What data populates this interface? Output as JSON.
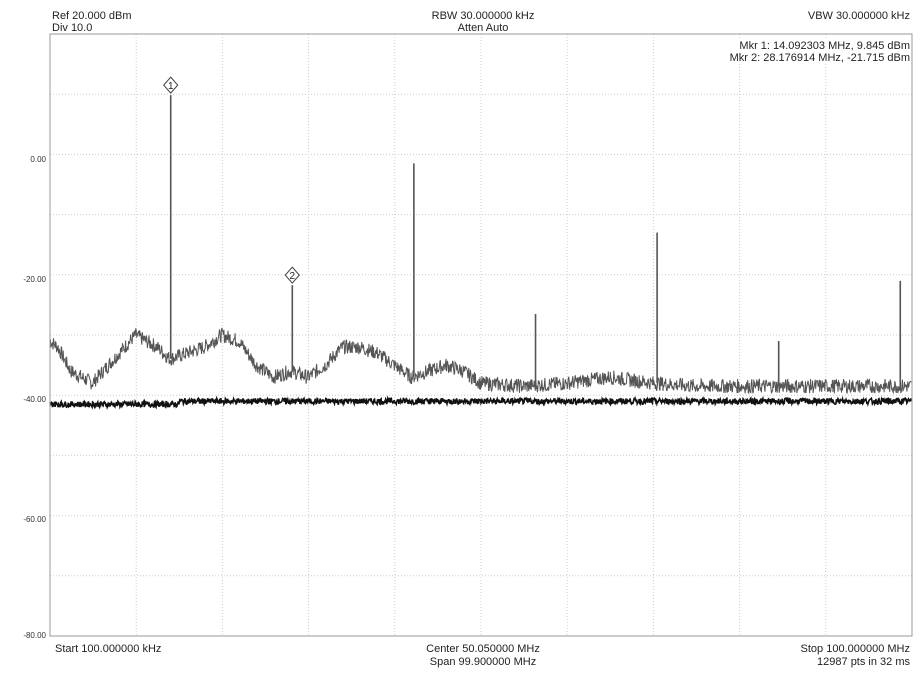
{
  "header": {
    "ref": "Ref 20.000 dBm",
    "div": "Div 10.0",
    "rbw": "RBW 30.000000 kHz",
    "atten": "Atten Auto",
    "vbw": "VBW 30.000000 kHz",
    "mkr1": "Mkr 1: 14.092303 MHz, 9.845 dBm",
    "mkr2": "Mkr 2: 28.176914 MHz, -21.715 dBm"
  },
  "footer": {
    "start": "Start 100.000000 kHz",
    "center": "Center 50.050000 MHz",
    "span": "Span 99.900000 MHz",
    "stop": "Stop 100.000000 MHz",
    "points": "12987 pts in 32 ms"
  },
  "chart_data": {
    "type": "line",
    "xlabel": "",
    "ylabel": "",
    "xlim": [
      0.1,
      100.0
    ],
    "ylim": [
      -80,
      20
    ],
    "x_unit": "MHz",
    "y_unit": "dBm",
    "ytick_labels": [
      "0.00",
      "-20.00",
      "-40.00",
      "-60.00",
      "-80.00"
    ],
    "ytick_values": [
      0,
      -20,
      -40,
      -60,
      -80
    ],
    "grid": true,
    "grid_divisions": {
      "x": 10,
      "y": 10
    },
    "colors": {
      "trace": "#555555",
      "noise_floor": "#111111",
      "grid": "#cccccc",
      "marker": "#444444"
    },
    "markers": [
      {
        "label": "1",
        "x": 14.092303,
        "y": 9.845
      },
      {
        "label": "2",
        "x": 28.176914,
        "y": -21.715
      }
    ],
    "peaks": [
      {
        "x": 14.09,
        "y": 9.845
      },
      {
        "x": 28.18,
        "y": -21.715
      },
      {
        "x": 42.27,
        "y": -1.5
      },
      {
        "x": 56.37,
        "y": -26.5
      },
      {
        "x": 70.46,
        "y": -13
      },
      {
        "x": 84.55,
        "y": -31
      },
      {
        "x": 98.64,
        "y": -21
      }
    ],
    "series": [
      {
        "x": [
          0.1,
          1,
          2.5,
          5,
          7.5,
          10,
          12.5,
          14,
          16,
          18,
          20,
          22,
          24,
          26,
          28,
          30,
          32,
          34,
          36,
          38,
          40,
          42,
          44,
          46,
          48,
          50,
          55,
          60,
          65,
          70,
          75,
          80,
          85,
          90,
          95,
          100
        ],
        "values": [
          -31,
          -32,
          -36,
          -38,
          -34,
          -30,
          -32,
          -34,
          -33,
          -32,
          -30,
          -31,
          -35,
          -37,
          -36,
          -37,
          -35,
          -32,
          -32,
          -33,
          -35,
          -37,
          -36,
          -35,
          -36,
          -38,
          -38.5,
          -38,
          -37,
          -38,
          -38.5,
          -38.5,
          -38.5,
          -38.5,
          -38.5,
          -38.5
        ]
      },
      {
        "x": [
          0.1,
          5,
          15,
          15.1,
          30,
          40,
          50,
          60,
          70,
          80,
          90,
          100
        ],
        "values": [
          -41.5,
          -41.5,
          -41.5,
          -41,
          -41,
          -41,
          -41,
          -41,
          -41,
          -41,
          -41,
          -41
        ]
      }
    ]
  }
}
